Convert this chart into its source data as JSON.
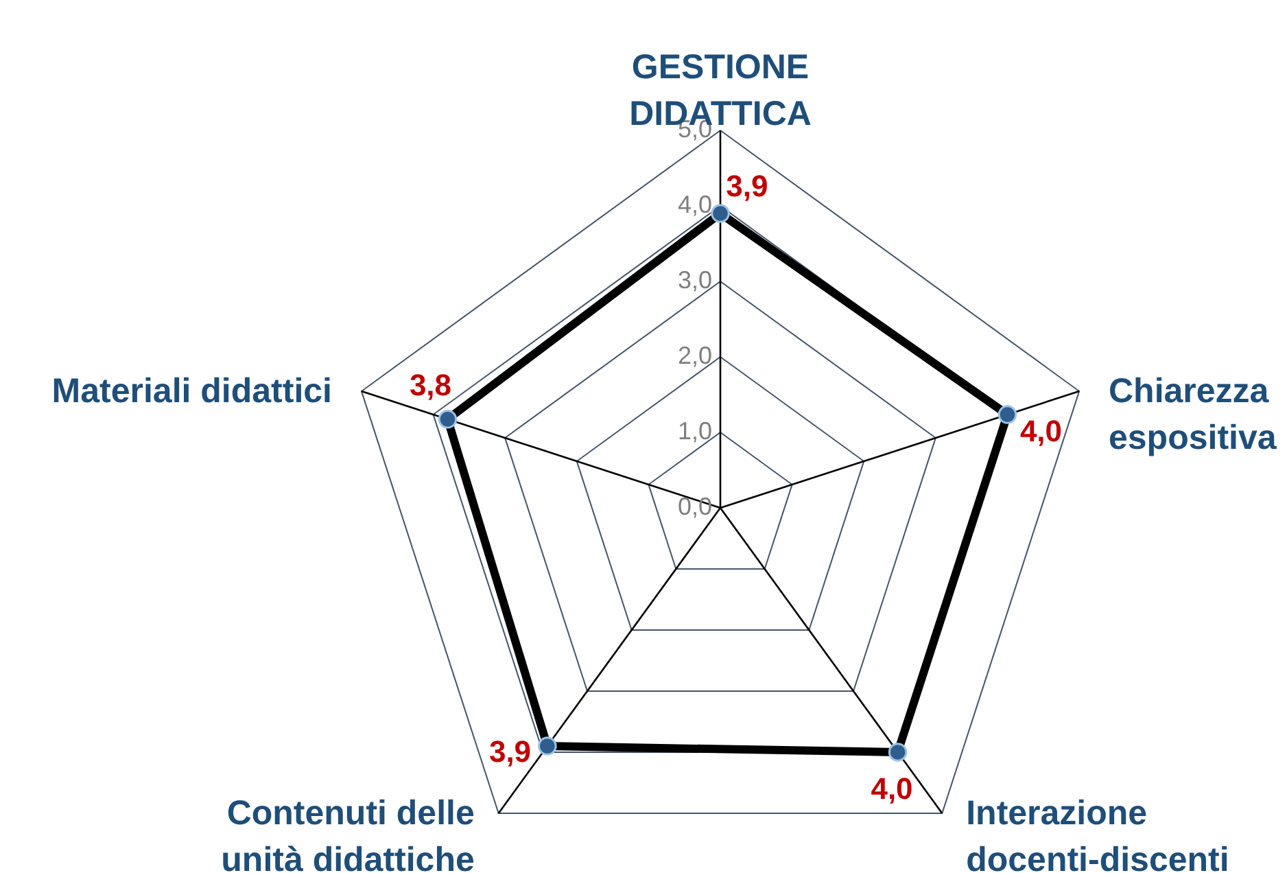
{
  "chart_data": {
    "type": "radar",
    "categories": [
      "GESTIONE DIDATTICA",
      "Chiarezza espositiva",
      "Interazione docenti-discenti",
      "Contenuti delle unità didattiche",
      "Materiali didattici"
    ],
    "series": [
      {
        "color": "#000000",
        "values": [
          3.9,
          4.0,
          4.0,
          3.9,
          3.8
        ],
        "value_labels": [
          "3,9",
          "4,0",
          "4,0",
          "3,9",
          "3,8"
        ]
      }
    ],
    "ylim": [
      0,
      5
    ],
    "yticks": [
      {
        "value": 0,
        "label": "0,0"
      },
      {
        "value": 1,
        "label": "1,0"
      },
      {
        "value": 2,
        "label": "2,0"
      },
      {
        "value": 3,
        "label": "3,0"
      },
      {
        "value": 4,
        "label": "4,0"
      },
      {
        "value": 5,
        "label": "5,0"
      }
    ],
    "grid": true,
    "marker": "circle"
  }
}
